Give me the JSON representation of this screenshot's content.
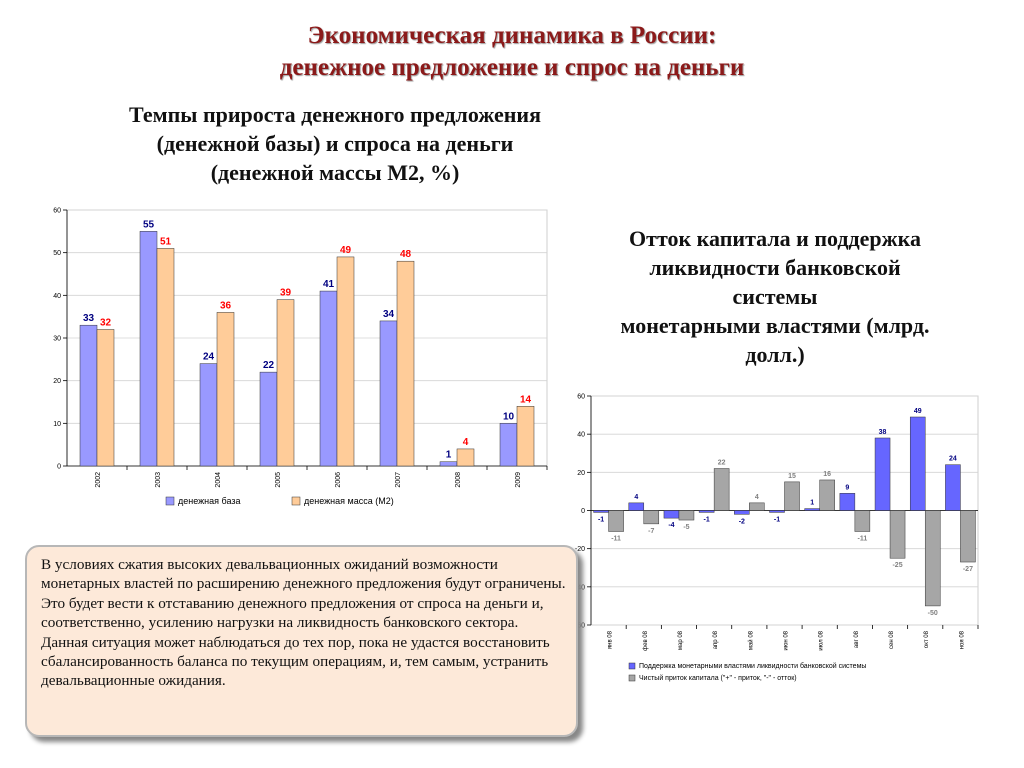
{
  "header": {
    "title_line1": "Экономическая динамика в России:",
    "title_line2": "денежное предложение и спрос на деньги"
  },
  "chart_data": [
    {
      "type": "bar",
      "title": "Темпы прироста денежного предложения (денежной базы) и спроса на деньги (денежной массы М2, %)",
      "title_lines": [
        "Темпы прироста денежного предложения",
        "(денежной базы) и спроса на деньги",
        "(денежной массы М2, %)"
      ],
      "categories": [
        "2002",
        "2003",
        "2004",
        "2005",
        "2006",
        "2007",
        "2008",
        "2009"
      ],
      "series": [
        {
          "name": "денежная база",
          "values": [
            33,
            55,
            24,
            22,
            41,
            34,
            1,
            10
          ],
          "color": "#9999ff",
          "label_color": "#000080"
        },
        {
          "name": "денежная масса (М2)",
          "values": [
            32,
            51,
            36,
            39,
            49,
            48,
            4,
            14
          ],
          "color": "#ffcc99",
          "label_color": "#ff0000"
        }
      ],
      "ylim": [
        0,
        60
      ],
      "yticks": [
        0,
        10,
        20,
        30,
        40,
        50,
        60
      ],
      "grid": true,
      "legend_position": "bottom"
    },
    {
      "type": "bar",
      "title": "Отток капитала и поддержка ликвидности банковской системы монетарными властями (млрд. долл.)",
      "title_lines": [
        "Отток капитала и поддержка",
        "ликвидности банковской",
        "системы",
        "монетарными властями (млрд.",
        "долл.)"
      ],
      "categories": [
        "янв 08",
        "фев 08",
        "мар 08",
        "апр 08",
        "май 08",
        "июн 08",
        "июл 08",
        "авг 08",
        "сен 08",
        "окт 08",
        "ноя 08"
      ],
      "series": [
        {
          "name": "Поддержка монетарными властями ликвидности банковской системы",
          "values": [
            -1,
            4,
            -4,
            -1,
            -2,
            -1,
            1,
            9,
            38,
            49,
            24
          ],
          "color": "#6666ff",
          "label_color": "#000080"
        },
        {
          "name": "Чистый приток капитала (\"+\" - приток, \"-\" - отток)",
          "values": [
            -11,
            -7,
            -5,
            22,
            4,
            15,
            16,
            -11,
            -25,
            -50,
            -27
          ],
          "color": "#a6a6a6",
          "label_color": "#808080"
        }
      ],
      "ylim": [
        -60,
        60
      ],
      "yticks": [
        -60,
        -40,
        -20,
        0,
        20,
        40,
        60
      ],
      "grid": true,
      "legend_position": "bottom"
    }
  ],
  "note": {
    "paragraph1": "В условиях сжатия высоких девальвационных ожиданий возможности монетарных властей по расширению денежного предложения будут ограничены. Это будет вести к отставанию денежного предложения от спроса на деньги и, соответственно, усилению нагрузки на ликвидность банковского сектора.",
    "paragraph2": "Данная ситуация может наблюдаться до тех пор, пока не удастся восстановить сбалансированность баланса по текущим операциям, и, тем самым, устранить девальвационные ожидания."
  }
}
